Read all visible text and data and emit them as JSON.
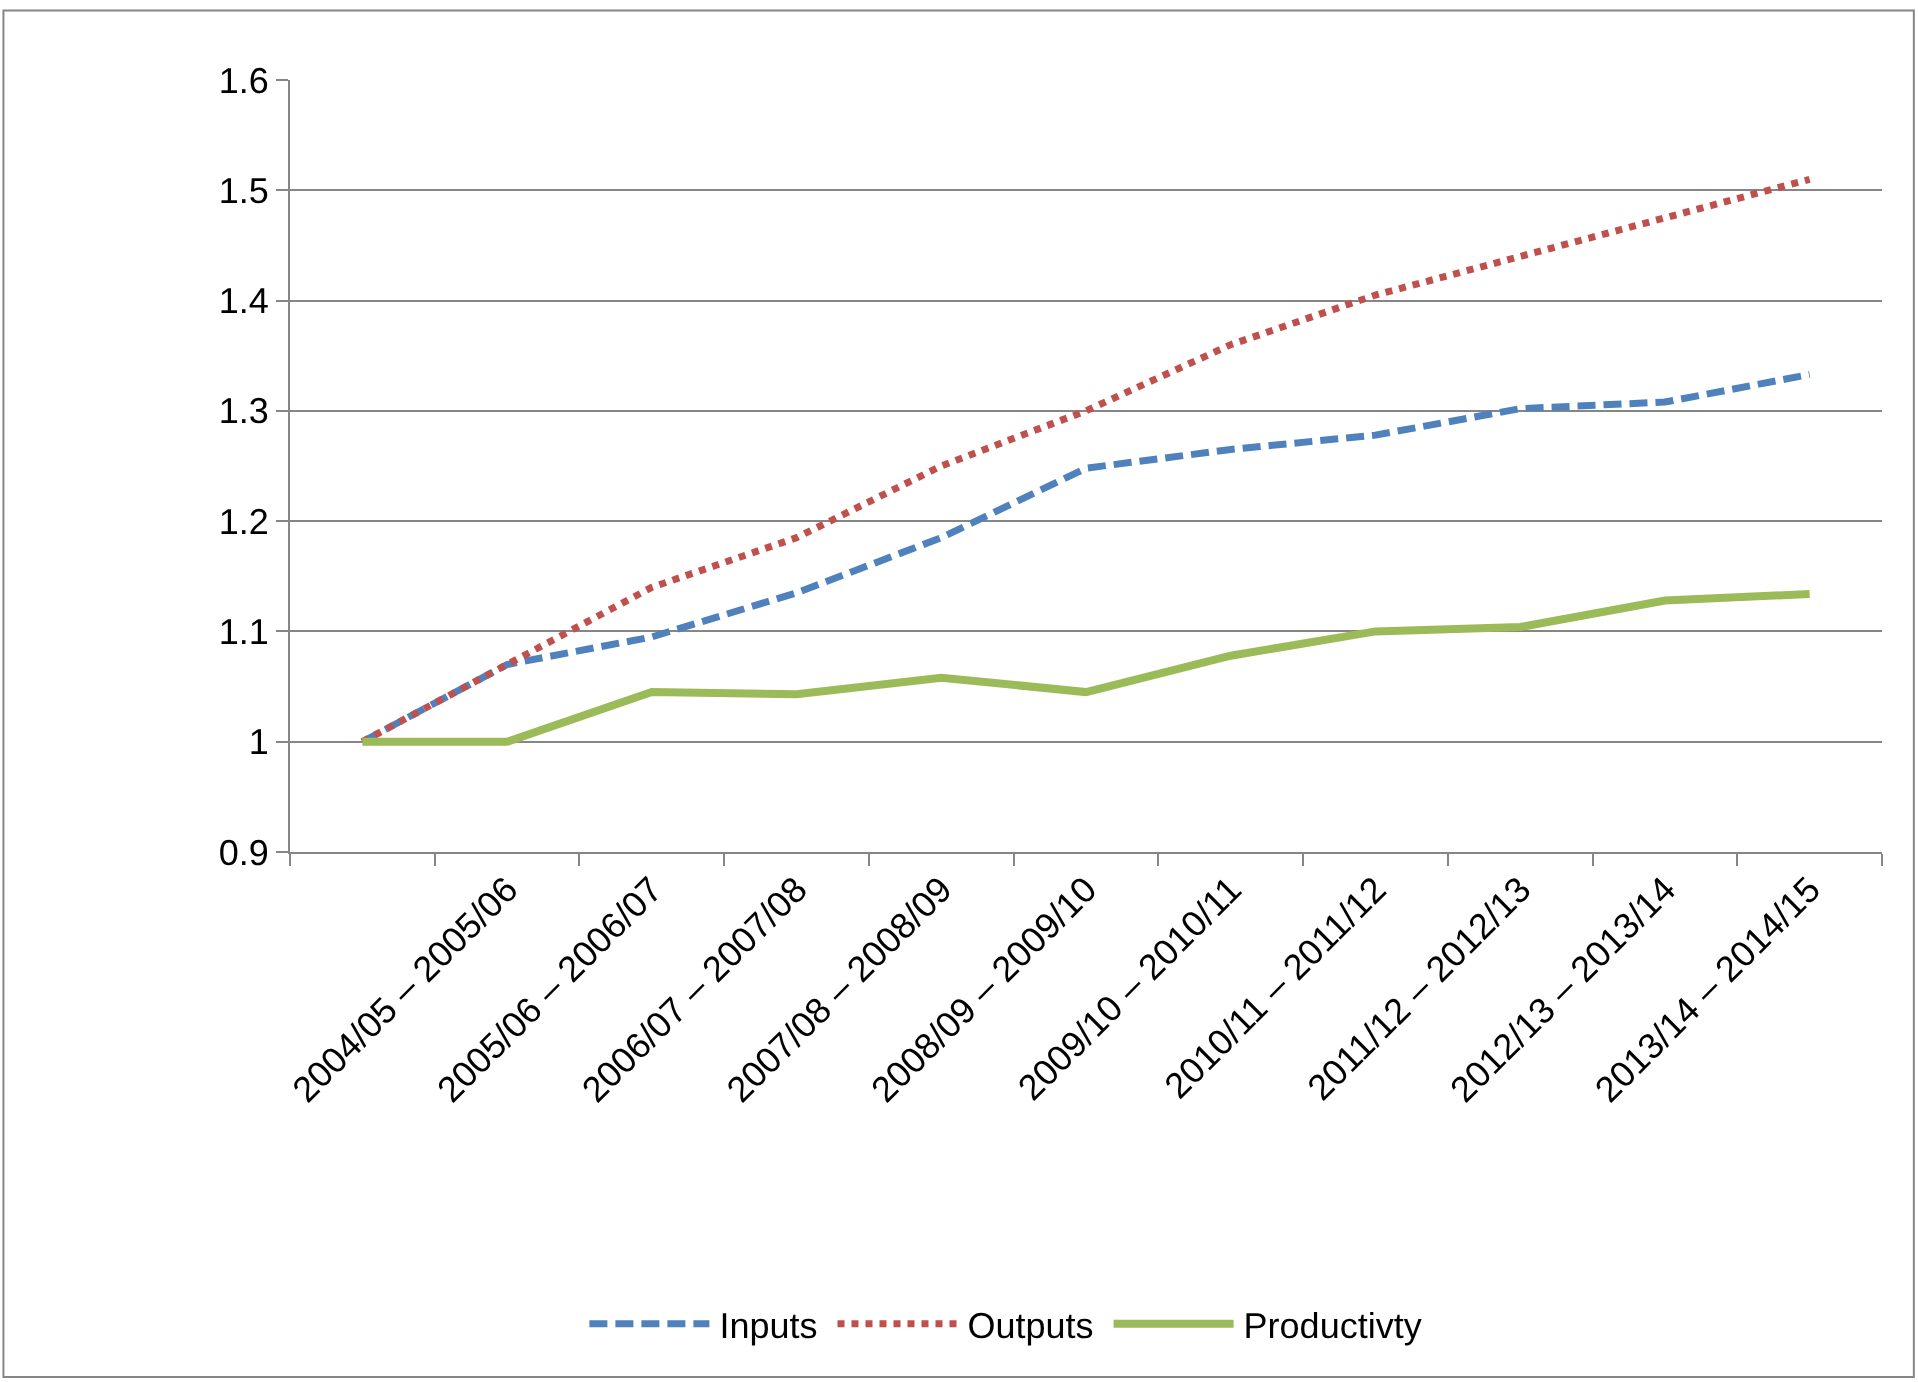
{
  "chart_data": {
    "type": "line",
    "categories": [
      null,
      "2004/05 – 2005/06",
      "2005/06 – 2006/07",
      "2006/07 – 2007/08",
      "2007/08 – 2008/09",
      "2008/09 – 2009/10",
      "2009/10 – 2010/11",
      "2010/11 – 2011/12",
      "2011/12 – 2012/13",
      "2012/13 – 2013/14",
      "2013/14 – 2014/15"
    ],
    "series": [
      {
        "name": "Inputs",
        "color": "#4f81bd",
        "line_style": "dashed",
        "values": [
          1.0,
          1.07,
          1.095,
          1.135,
          1.185,
          1.248,
          1.265,
          1.278,
          1.302,
          1.308,
          1.333
        ]
      },
      {
        "name": "Outputs",
        "color": "#c0504d",
        "line_style": "dotted",
        "values": [
          1.0,
          1.07,
          1.14,
          1.185,
          1.25,
          1.3,
          1.36,
          1.405,
          1.44,
          1.475,
          1.51
        ]
      },
      {
        "name": "Productivty",
        "color": "#9bbb59",
        "line_style": "solid",
        "values": [
          1.0,
          1.0,
          1.045,
          1.043,
          1.058,
          1.045,
          1.078,
          1.1,
          1.104,
          1.128,
          1.134
        ]
      }
    ],
    "ylim": [
      0.9,
      1.6
    ],
    "yticks": [
      0.9,
      1,
      1.1,
      1.2,
      1.3,
      1.4,
      1.5,
      1.6
    ],
    "grid": "y",
    "legend": "bottom",
    "marker": "none"
  }
}
